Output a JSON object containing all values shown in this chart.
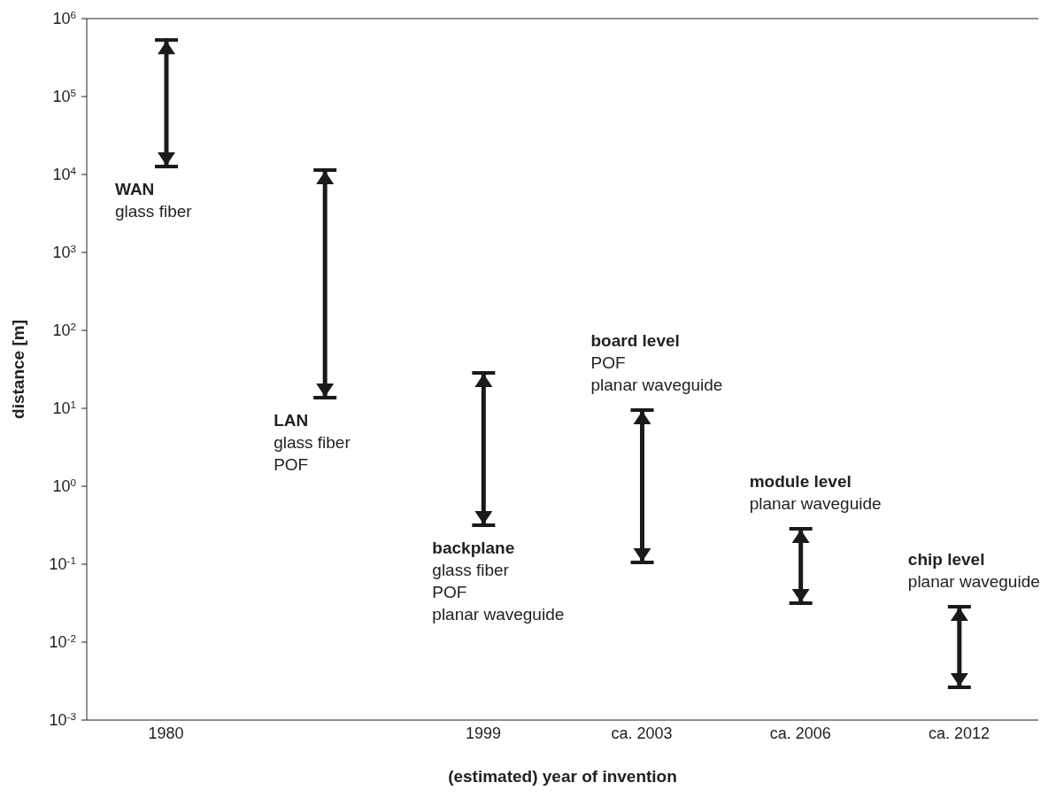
{
  "chart_data": {
    "type": "bar",
    "xlabel": "(estimated) year of invention",
    "ylabel": "distance [m]",
    "categories": [
      "1980",
      null,
      "1999",
      "ca. 2003",
      "ca. 2006",
      "ca. 2012"
    ],
    "base": [
      12000,
      13,
      0.3,
      0.1,
      0.03,
      0.0025
    ],
    "values": [
      548000,
      11987,
      29.7,
      9.9,
      0.27,
      0.0275
    ],
    "color": "#1a1a1a",
    "log": true,
    "ylim": [
      0.001,
      1000000
    ],
    "yticks": [
      {
        "value": 0.001,
        "label": "10$^{-3}$"
      },
      {
        "value": 0.01,
        "label": "10$^{-2}$"
      },
      {
        "value": 0.1,
        "label": "10$^{-1}$"
      },
      {
        "value": 1,
        "label": "10$^{0}$"
      },
      {
        "value": 10,
        "label": "10$^{1}$"
      },
      {
        "value": 100,
        "label": "10$^{2}$"
      },
      {
        "value": 1000,
        "label": "10$^{3}$"
      },
      {
        "value": 10000,
        "label": "10$^{4}$"
      },
      {
        "value": 100000,
        "label": "10$^{5}$"
      },
      {
        "value": 1000000,
        "label": "10$^{6}$"
      }
    ],
    "grid": false,
    "legend": false,
    "annotations": [
      "WAN\nglass fiber",
      "LAN\nglass fiber\nPOF",
      "backplane\nglass fiber\nPOF\nplanar waveguide",
      "board level\nPOF\nplanar waveguide",
      "module level\nplanar waveguide",
      "chip level\nplanar waveguide"
    ]
  }
}
